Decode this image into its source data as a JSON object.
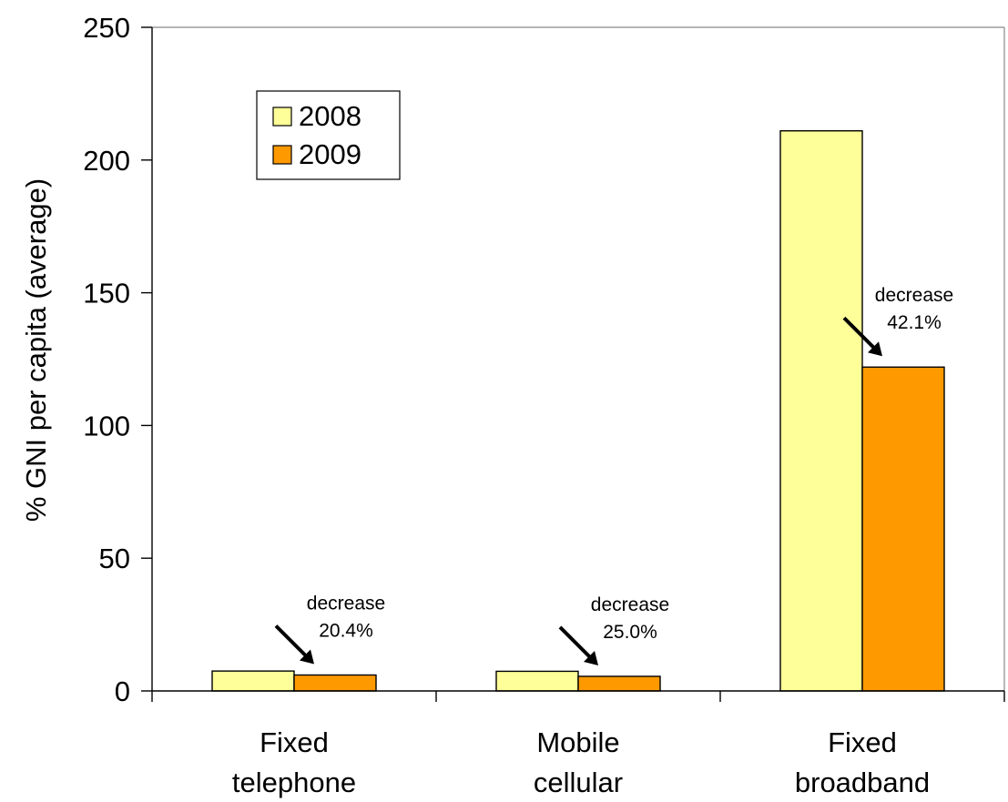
{
  "chart_data": {
    "type": "bar",
    "title": "",
    "ylabel": "% GNI per capita (average)",
    "xlabel": "",
    "ylim": [
      0,
      250
    ],
    "yticks": [
      0,
      50,
      100,
      150,
      200,
      250
    ],
    "categories": [
      [
        "Fixed",
        "telephone"
      ],
      [
        "Mobile",
        "cellular"
      ],
      [
        "Fixed",
        "broadband"
      ]
    ],
    "series": [
      {
        "name": "2008",
        "color": "#ffff99",
        "values": [
          7.5,
          7.4,
          211
        ]
      },
      {
        "name": "2009",
        "color": "#ff9900",
        "values": [
          6.0,
          5.5,
          122
        ]
      }
    ],
    "annotations": [
      {
        "category_index": 0,
        "lines": [
          "decrease",
          "20.4%"
        ]
      },
      {
        "category_index": 1,
        "lines": [
          "decrease",
          "25.0%"
        ]
      },
      {
        "category_index": 2,
        "lines": [
          "decrease",
          "42.1%"
        ]
      }
    ],
    "legend": {
      "position": "top-left"
    },
    "grid": false
  }
}
